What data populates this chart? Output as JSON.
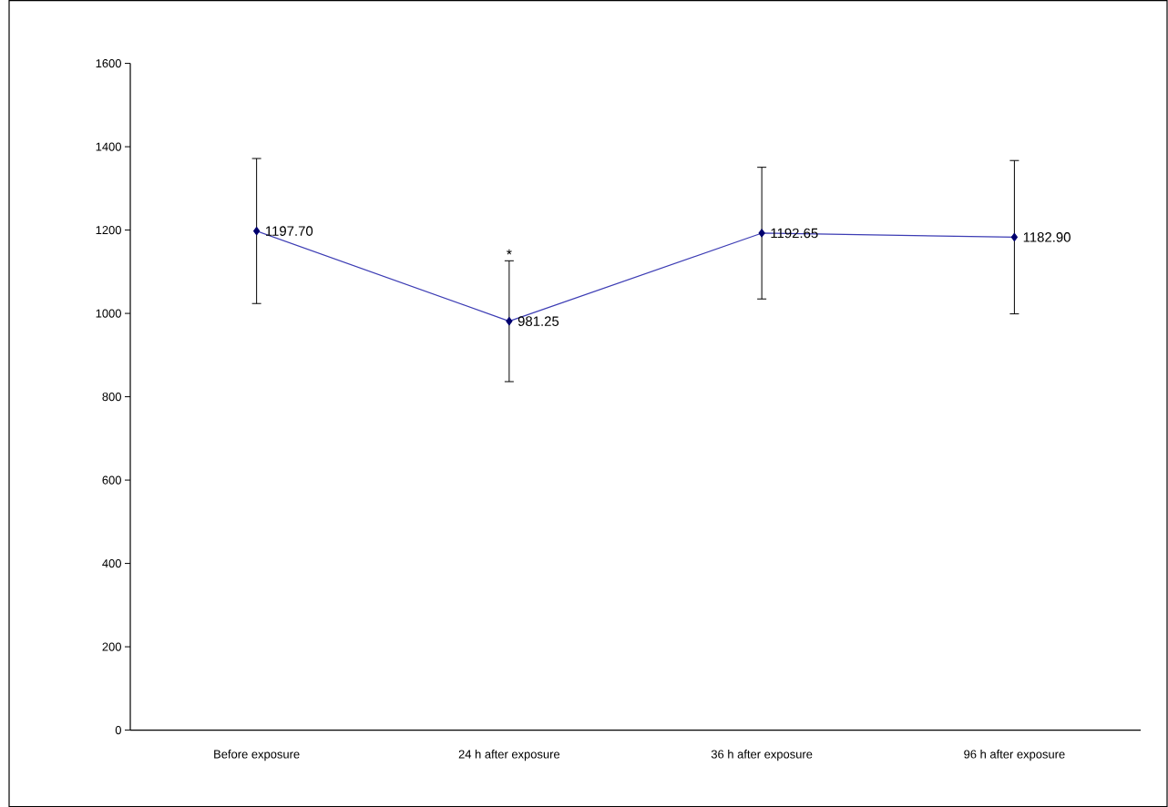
{
  "chart_data": {
    "type": "line",
    "categories": [
      "Before exposure",
      "24 h after exposure",
      "36 h after exposure",
      "96 h after exposure"
    ],
    "values": [
      1197.7,
      981.25,
      1192.65,
      1182.9
    ],
    "value_labels": [
      "1197.70",
      "981.25",
      "1192.65",
      "1182.90"
    ],
    "errors": [
      174,
      145,
      158,
      184
    ],
    "color": "#3c3cb4",
    "marker": "diamond",
    "line_style": "solid",
    "grid": false,
    "ylim": [
      0,
      1600
    ],
    "yticks": [
      0,
      200,
      400,
      600,
      800,
      1000,
      1200,
      1400,
      1600
    ],
    "annotations": [
      {
        "text": "*",
        "x": "24 h after exposure",
        "y": 1127
      }
    ]
  }
}
